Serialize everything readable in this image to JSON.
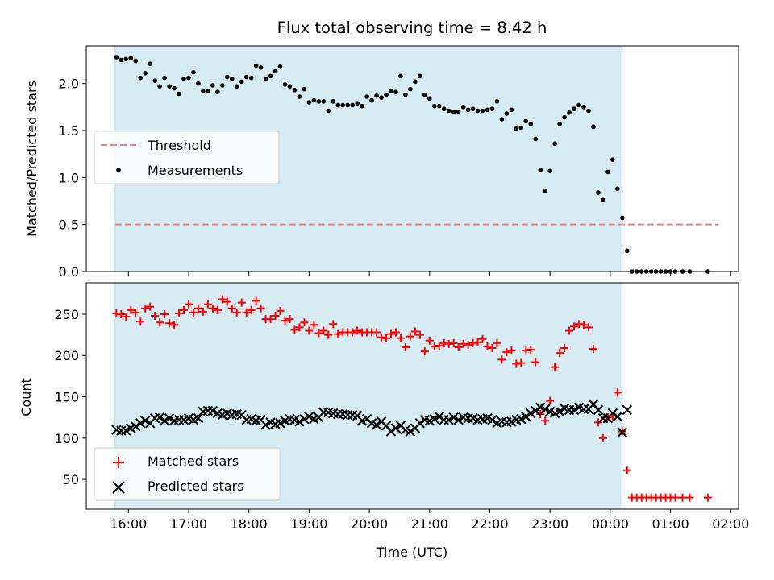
{
  "chart_data": [
    {
      "type": "scatter",
      "title": "Flux total observing time = 8.42 h",
      "ylabel": "Matched/Predicted stars",
      "xlabel": "",
      "x_unit": "hours UTC (from 15:00; values past 24 are after midnight)",
      "xlim": [
        15.3,
        26.13
      ],
      "ylim": [
        0,
        2.4
      ],
      "yticks": [
        "0.0",
        "0.5",
        "1.0",
        "1.5",
        "2.0"
      ],
      "ytick_values": [
        0,
        0.5,
        1.0,
        1.5,
        2.0
      ],
      "grid": false,
      "legend_position": "center-left",
      "observing_window": {
        "start": 15.78,
        "end": 24.2,
        "color": "#add8e6"
      },
      "series": [
        {
          "name": "Threshold",
          "kind": "line",
          "style": "dashed",
          "color": "#f08080",
          "x": [
            15.78,
            25.8
          ],
          "y": [
            0.5,
            0.5
          ]
        },
        {
          "name": "Measurements",
          "kind": "points",
          "color": "#000000",
          "x": [
            15.8,
            15.88,
            15.96,
            16.04,
            16.12,
            16.2,
            16.28,
            16.36,
            16.44,
            16.52,
            16.6,
            16.68,
            16.76,
            16.84,
            16.92,
            17.0,
            17.08,
            17.16,
            17.24,
            17.32,
            17.4,
            17.48,
            17.56,
            17.64,
            17.72,
            17.8,
            17.88,
            17.96,
            18.04,
            18.12,
            18.2,
            18.28,
            18.36,
            18.44,
            18.52,
            18.6,
            18.68,
            18.76,
            18.84,
            18.92,
            19.0,
            19.08,
            19.16,
            19.24,
            19.32,
            19.4,
            19.48,
            19.56,
            19.64,
            19.72,
            19.8,
            19.88,
            19.96,
            20.04,
            20.12,
            20.2,
            20.28,
            20.36,
            20.44,
            20.52,
            20.6,
            20.68,
            20.76,
            20.84,
            20.92,
            21.0,
            21.08,
            21.16,
            21.24,
            21.32,
            21.4,
            21.48,
            21.56,
            21.64,
            21.72,
            21.8,
            21.88,
            21.96,
            22.04,
            22.12,
            22.2,
            22.28,
            22.36,
            22.44,
            22.52,
            22.6,
            22.68,
            22.76,
            22.84,
            22.92,
            23.0,
            23.08,
            23.16,
            23.24,
            23.32,
            23.4,
            23.48,
            23.56,
            23.64,
            23.72,
            23.8,
            23.88,
            23.96,
            24.04,
            24.12,
            24.2,
            24.28,
            24.36,
            24.44,
            24.52,
            24.6,
            24.68,
            24.76,
            24.84,
            24.92,
            25.0,
            25.08,
            25.2,
            25.32,
            25.62
          ],
          "y": [
            2.28,
            2.25,
            2.26,
            2.27,
            2.24,
            2.06,
            2.11,
            2.21,
            2.03,
            1.97,
            2.06,
            1.97,
            1.95,
            1.89,
            2.05,
            2.06,
            2.12,
            2.0,
            1.92,
            1.92,
            1.98,
            1.91,
            1.98,
            2.07,
            2.05,
            1.97,
            2.02,
            2.07,
            2.06,
            2.19,
            2.17,
            2.05,
            2.08,
            2.13,
            2.18,
            1.99,
            1.97,
            1.93,
            1.86,
            1.94,
            1.8,
            1.82,
            1.81,
            1.81,
            1.71,
            1.81,
            1.77,
            1.77,
            1.77,
            1.77,
            1.79,
            1.76,
            1.86,
            1.82,
            1.87,
            1.85,
            1.88,
            1.92,
            1.91,
            2.08,
            1.88,
            1.94,
            2.02,
            2.08,
            1.88,
            1.84,
            1.76,
            1.76,
            1.73,
            1.71,
            1.7,
            1.7,
            1.75,
            1.72,
            1.73,
            1.71,
            1.71,
            1.72,
            1.73,
            1.81,
            1.62,
            1.68,
            1.72,
            1.52,
            1.53,
            1.6,
            1.57,
            1.41,
            1.08,
            0.86,
            1.07,
            1.36,
            1.57,
            1.64,
            1.69,
            1.73,
            1.77,
            1.75,
            1.71,
            1.54,
            0.84,
            0.76,
            1.06,
            1.19,
            0.88,
            0.57,
            0.22,
            0.0,
            0.0,
            0.0,
            0.0,
            0.0,
            0.0,
            0.0,
            0.0,
            0.0,
            0.0,
            0.0,
            0.0,
            0.0
          ]
        }
      ]
    },
    {
      "type": "scatter",
      "title": "",
      "ylabel": "Count",
      "xlabel": "Time (UTC)",
      "x_unit": "hours UTC (from 15:00; values past 24 are after midnight)",
      "xlim": [
        15.3,
        26.13
      ],
      "ylim": [
        14,
        288
      ],
      "yticks": [
        "50",
        "100",
        "150",
        "200",
        "250"
      ],
      "ytick_values": [
        50,
        100,
        150,
        200,
        250
      ],
      "xticks": [
        "16:00",
        "17:00",
        "18:00",
        "19:00",
        "20:00",
        "21:00",
        "22:00",
        "23:00",
        "00:00",
        "01:00",
        "02:00"
      ],
      "xtick_values": [
        16,
        17,
        18,
        19,
        20,
        21,
        22,
        23,
        24,
        25,
        26
      ],
      "grid": false,
      "legend_position": "lower-left",
      "observing_window": {
        "start": 15.78,
        "end": 24.2,
        "color": "#add8e6"
      },
      "series": [
        {
          "name": "Matched stars",
          "marker": "plus",
          "color": "#ff0000",
          "x": [
            15.8,
            15.88,
            15.96,
            16.04,
            16.12,
            16.2,
            16.28,
            16.36,
            16.44,
            16.52,
            16.6,
            16.68,
            16.76,
            16.84,
            16.92,
            17.0,
            17.08,
            17.16,
            17.24,
            17.32,
            17.4,
            17.48,
            17.56,
            17.64,
            17.72,
            17.8,
            17.88,
            17.96,
            18.04,
            18.12,
            18.2,
            18.28,
            18.36,
            18.44,
            18.52,
            18.6,
            18.68,
            18.76,
            18.84,
            18.92,
            19.0,
            19.08,
            19.16,
            19.24,
            19.32,
            19.4,
            19.48,
            19.56,
            19.64,
            19.72,
            19.8,
            19.88,
            19.96,
            20.04,
            20.12,
            20.2,
            20.28,
            20.36,
            20.44,
            20.52,
            20.6,
            20.68,
            20.76,
            20.84,
            20.92,
            21.0,
            21.08,
            21.16,
            21.24,
            21.32,
            21.4,
            21.48,
            21.56,
            21.64,
            21.72,
            21.8,
            21.88,
            21.96,
            22.04,
            22.12,
            22.2,
            22.28,
            22.36,
            22.44,
            22.52,
            22.6,
            22.68,
            22.76,
            22.84,
            22.92,
            23.0,
            23.08,
            23.16,
            23.24,
            23.32,
            23.4,
            23.48,
            23.56,
            23.64,
            23.72,
            23.8,
            23.88,
            23.96,
            24.04,
            24.12,
            24.2,
            24.28,
            24.36,
            24.44,
            24.52,
            24.6,
            24.68,
            24.76,
            24.84,
            24.92,
            25.0,
            25.08,
            25.2,
            25.32,
            25.62
          ],
          "y": [
            251,
            250,
            247,
            255,
            252,
            241,
            257,
            259,
            248,
            240,
            250,
            239,
            237,
            251,
            255,
            262,
            252,
            257,
            253,
            262,
            257,
            255,
            268,
            265,
            257,
            252,
            264,
            252,
            255,
            266,
            257,
            244,
            244,
            248,
            254,
            242,
            244,
            231,
            234,
            240,
            230,
            237,
            227,
            230,
            225,
            238,
            226,
            228,
            228,
            228,
            230,
            228,
            228,
            228,
            228,
            222,
            221,
            226,
            228,
            221,
            210,
            223,
            229,
            225,
            205,
            218,
            211,
            212,
            215,
            214,
            215,
            210,
            214,
            213,
            215,
            216,
            220,
            211,
            209,
            215,
            195,
            204,
            206,
            190,
            191,
            206,
            207,
            192,
            129,
            121,
            145,
            186,
            203,
            209,
            230,
            235,
            238,
            237,
            234,
            208,
            119,
            100,
            125,
            127,
            155,
            108,
            61,
            28,
            28,
            28,
            28,
            28,
            28,
            28,
            28,
            28,
            28,
            28,
            28,
            28
          ]
        },
        {
          "name": "Predicted stars",
          "marker": "cross",
          "color": "#000000",
          "x": [
            15.8,
            15.88,
            15.96,
            16.04,
            16.12,
            16.2,
            16.28,
            16.36,
            16.44,
            16.52,
            16.6,
            16.68,
            16.76,
            16.84,
            16.92,
            17.0,
            17.08,
            17.16,
            17.24,
            17.32,
            17.4,
            17.48,
            17.56,
            17.64,
            17.72,
            17.8,
            17.88,
            17.96,
            18.04,
            18.12,
            18.2,
            18.28,
            18.36,
            18.44,
            18.52,
            18.6,
            18.68,
            18.76,
            18.84,
            18.92,
            19.0,
            19.08,
            19.16,
            19.24,
            19.32,
            19.4,
            19.48,
            19.56,
            19.64,
            19.72,
            19.8,
            19.88,
            19.96,
            20.04,
            20.12,
            20.2,
            20.28,
            20.36,
            20.44,
            20.52,
            20.6,
            20.68,
            20.76,
            20.84,
            20.92,
            21.0,
            21.08,
            21.16,
            21.24,
            21.32,
            21.4,
            21.48,
            21.56,
            21.64,
            21.72,
            21.8,
            21.88,
            21.96,
            22.04,
            22.12,
            22.2,
            22.28,
            22.36,
            22.44,
            22.52,
            22.6,
            22.68,
            22.76,
            22.84,
            22.92,
            23.0,
            23.08,
            23.16,
            23.24,
            23.32,
            23.4,
            23.48,
            23.56,
            23.64,
            23.72,
            23.8,
            23.88,
            23.96,
            24.04,
            24.12,
            24.2,
            24.28
          ],
          "y": [
            110,
            109,
            109,
            112,
            114,
            118,
            121,
            118,
            124,
            125,
            121,
            124,
            121,
            122,
            122,
            124,
            122,
            124,
            132,
            133,
            133,
            130,
            128,
            130,
            128,
            129,
            128,
            122,
            123,
            121,
            122,
            116,
            119,
            117,
            118,
            121,
            123,
            122,
            120,
            123,
            126,
            123,
            125,
            131,
            131,
            130,
            129,
            129,
            128,
            128,
            127,
            121,
            123,
            118,
            116,
            120,
            115,
            108,
            112,
            115,
            110,
            108,
            112,
            118,
            122,
            121,
            123,
            126,
            122,
            122,
            125,
            122,
            125,
            124,
            124,
            122,
            123,
            124,
            122,
            118,
            120,
            119,
            120,
            122,
            123,
            126,
            130,
            133,
            137,
            135,
            132,
            130,
            132,
            136,
            134,
            134,
            137,
            135,
            135,
            141,
            134,
            124,
            124,
            130,
            126,
            107,
            134
          ]
        }
      ]
    }
  ]
}
